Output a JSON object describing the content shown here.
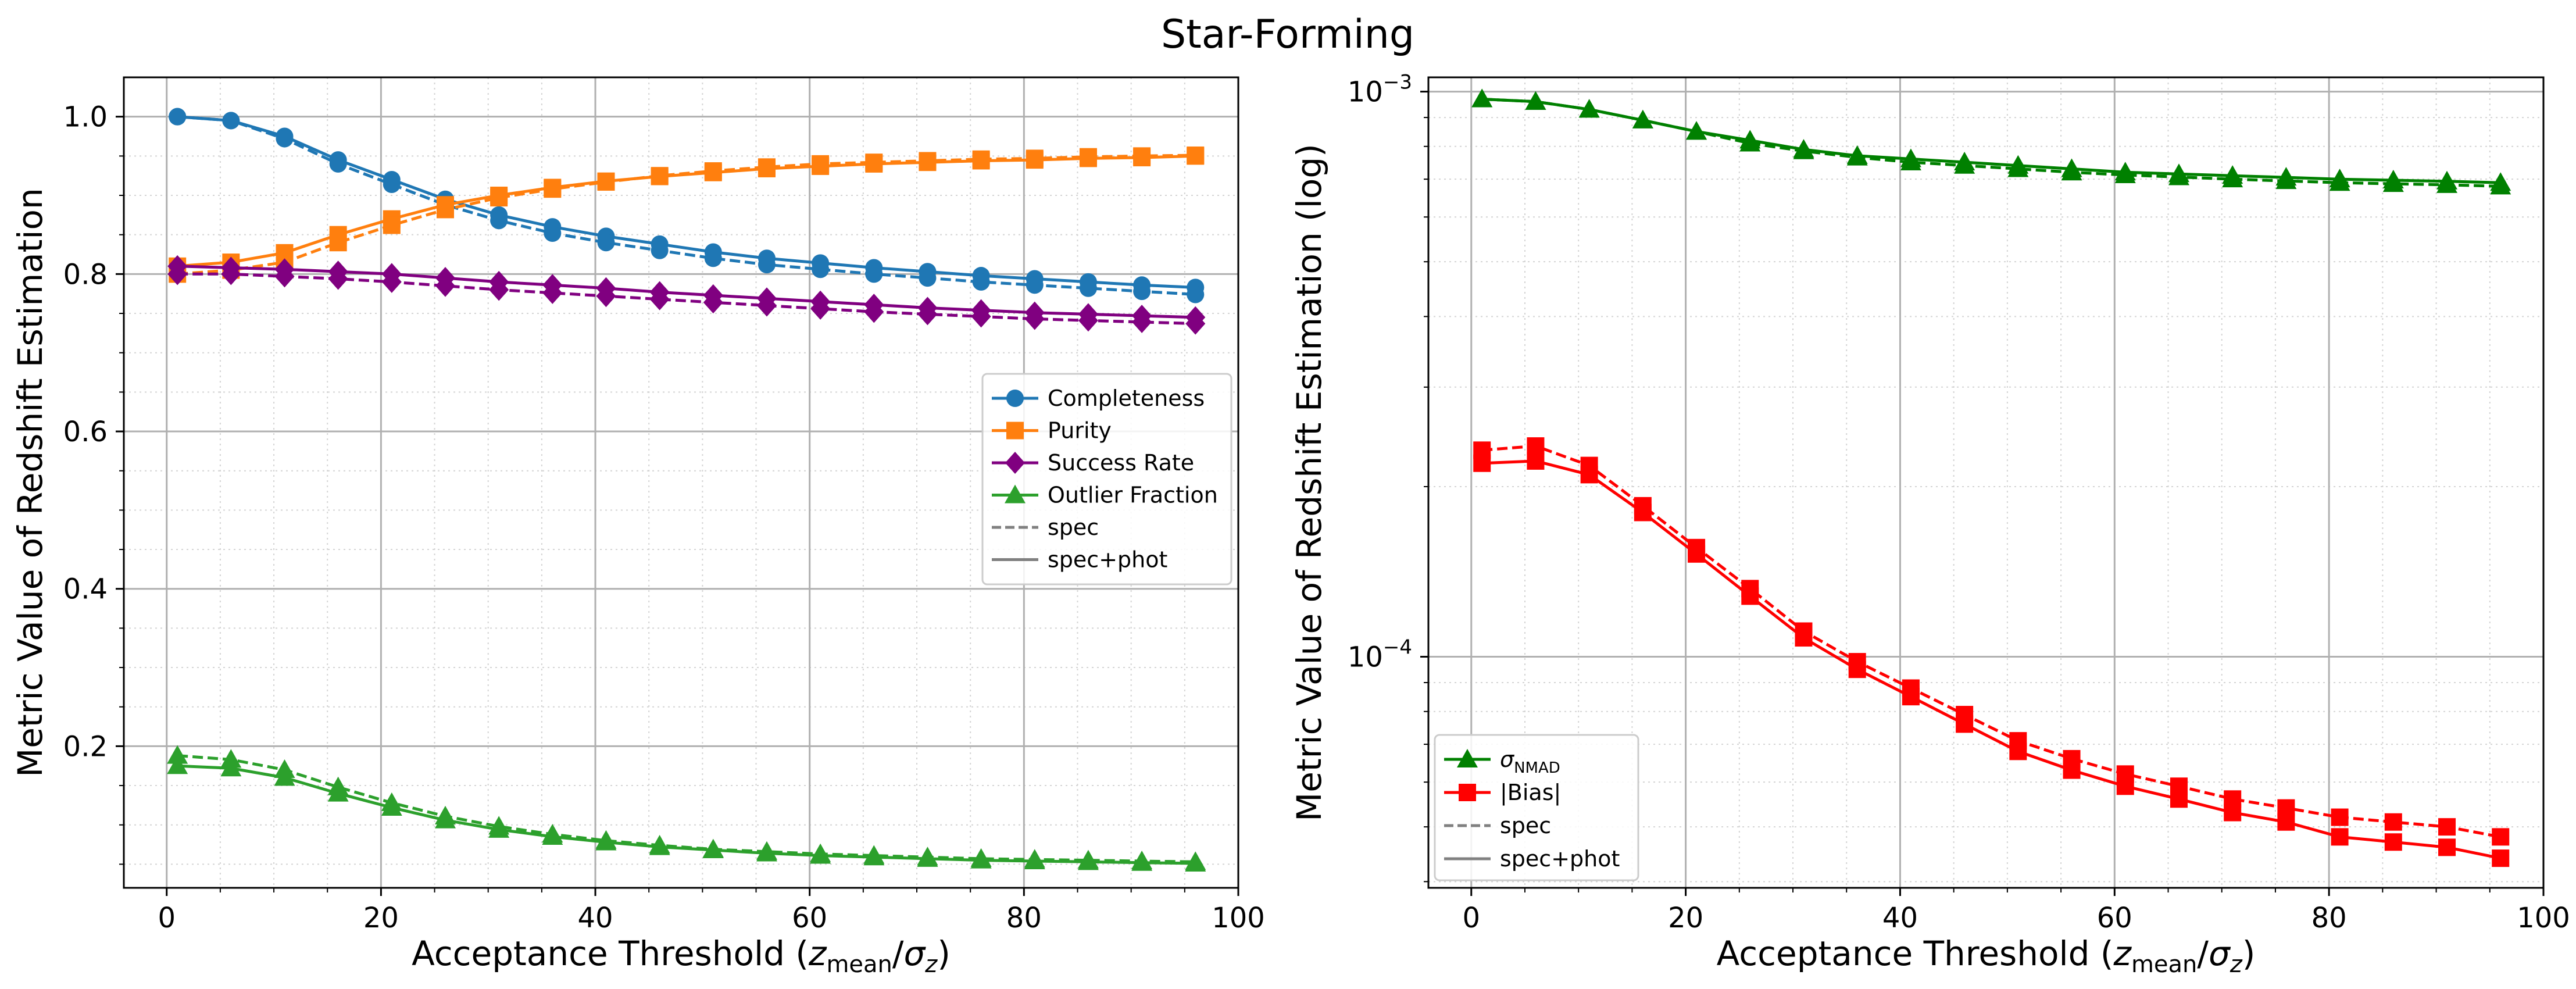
{
  "figure": {
    "title": "Star-Forming"
  },
  "chart_data": [
    {
      "type": "line",
      "xlabel_main": "Acceptance Threshold (",
      "xlabel_z": "z",
      "xlabel_sub1": "mean",
      "xlabel_slash": "/",
      "xlabel_sigma": "σ",
      "xlabel_sub2": "z",
      "xlabel_close": ")",
      "ylabel": "Metric Value of Redshift Estimation",
      "yscale": "linear",
      "xlim": [
        -4,
        100
      ],
      "ylim": [
        0.02,
        1.05
      ],
      "xticks": [
        0,
        20,
        40,
        60,
        80,
        100
      ],
      "xtick_labels": [
        "0",
        "20",
        "40",
        "60",
        "80",
        "100"
      ],
      "yticks": [
        0.2,
        0.4,
        0.6,
        0.8,
        1.0
      ],
      "ytick_labels": [
        "0.2",
        "0.4",
        "0.6",
        "0.8",
        "1.0"
      ],
      "grid": true,
      "legend_position": "center-right",
      "x": [
        1,
        6,
        11,
        16,
        21,
        26,
        31,
        36,
        41,
        46,
        51,
        56,
        61,
        66,
        71,
        76,
        81,
        86,
        91,
        96
      ],
      "series": [
        {
          "name": "Completeness",
          "variant": "spec+phot",
          "color": "#1f77b4",
          "marker": "circle",
          "values": [
            1.0,
            0.995,
            0.975,
            0.945,
            0.92,
            0.895,
            0.875,
            0.86,
            0.848,
            0.838,
            0.828,
            0.82,
            0.814,
            0.808,
            0.803,
            0.798,
            0.794,
            0.79,
            0.786,
            0.783
          ]
        },
        {
          "name": "Completeness",
          "variant": "spec",
          "color": "#1f77b4",
          "marker": "circle",
          "values": [
            1.0,
            0.995,
            0.972,
            0.94,
            0.914,
            0.888,
            0.868,
            0.852,
            0.84,
            0.83,
            0.82,
            0.812,
            0.806,
            0.8,
            0.795,
            0.79,
            0.786,
            0.782,
            0.778,
            0.774
          ]
        },
        {
          "name": "Purity",
          "variant": "spec+phot",
          "color": "#ff7f0e",
          "marker": "square",
          "values": [
            0.81,
            0.815,
            0.827,
            0.85,
            0.87,
            0.888,
            0.9,
            0.91,
            0.918,
            0.924,
            0.929,
            0.934,
            0.937,
            0.94,
            0.942,
            0.944,
            0.945,
            0.947,
            0.948,
            0.95
          ]
        },
        {
          "name": "Purity",
          "variant": "spec",
          "color": "#ff7f0e",
          "marker": "square",
          "values": [
            0.8,
            0.805,
            0.815,
            0.84,
            0.862,
            0.882,
            0.897,
            0.908,
            0.917,
            0.925,
            0.931,
            0.936,
            0.94,
            0.942,
            0.944,
            0.946,
            0.947,
            0.949,
            0.95,
            0.951
          ]
        },
        {
          "name": "Success Rate",
          "variant": "spec+phot",
          "color": "#800080",
          "marker": "diamond",
          "values": [
            0.81,
            0.808,
            0.806,
            0.803,
            0.8,
            0.795,
            0.79,
            0.786,
            0.782,
            0.777,
            0.773,
            0.769,
            0.765,
            0.761,
            0.757,
            0.754,
            0.751,
            0.749,
            0.747,
            0.745
          ]
        },
        {
          "name": "Success Rate",
          "variant": "spec",
          "color": "#800080",
          "marker": "diamond",
          "values": [
            0.8,
            0.8,
            0.797,
            0.794,
            0.79,
            0.785,
            0.78,
            0.776,
            0.772,
            0.768,
            0.764,
            0.76,
            0.756,
            0.752,
            0.749,
            0.746,
            0.743,
            0.741,
            0.739,
            0.737
          ]
        },
        {
          "name": "Outlier Fraction",
          "variant": "spec+phot",
          "color": "#2ca02c",
          "marker": "triangle",
          "values": [
            0.175,
            0.172,
            0.16,
            0.14,
            0.122,
            0.106,
            0.094,
            0.085,
            0.078,
            0.072,
            0.068,
            0.064,
            0.061,
            0.059,
            0.057,
            0.055,
            0.054,
            0.053,
            0.052,
            0.051
          ]
        },
        {
          "name": "Outlier Fraction",
          "variant": "spec",
          "color": "#2ca02c",
          "marker": "triangle",
          "values": [
            0.188,
            0.183,
            0.17,
            0.148,
            0.128,
            0.111,
            0.098,
            0.088,
            0.08,
            0.074,
            0.069,
            0.066,
            0.063,
            0.061,
            0.059,
            0.057,
            0.056,
            0.055,
            0.054,
            0.053
          ]
        }
      ],
      "legend": [
        {
          "label": "Completeness",
          "color": "#1f77b4",
          "marker": "circle",
          "style": "solid"
        },
        {
          "label": "Purity",
          "color": "#ff7f0e",
          "marker": "square",
          "style": "solid"
        },
        {
          "label": "Success Rate",
          "color": "#800080",
          "marker": "diamond",
          "style": "solid"
        },
        {
          "label": "Outlier Fraction",
          "color": "#2ca02c",
          "marker": "triangle",
          "style": "solid"
        },
        {
          "label": "spec",
          "color": "#808080",
          "marker": "none",
          "style": "dashed"
        },
        {
          "label": "spec+phot",
          "color": "#808080",
          "marker": "none",
          "style": "solid"
        }
      ]
    },
    {
      "type": "line",
      "xlabel_main": "Acceptance Threshold (",
      "xlabel_z": "z",
      "xlabel_sub1": "mean",
      "xlabel_slash": "/",
      "xlabel_sigma": "σ",
      "xlabel_sub2": "z",
      "xlabel_close": ")",
      "ylabel": "Metric Value of Redshift Estimation (log)",
      "yscale": "log",
      "xlim": [
        -4,
        100
      ],
      "ylim": [
        3.9e-05,
        0.00106
      ],
      "xticks": [
        0,
        20,
        40,
        60,
        80,
        100
      ],
      "xtick_labels": [
        "0",
        "20",
        "40",
        "60",
        "80",
        "100"
      ],
      "ytick_base": "10",
      "yticks": [
        0.0001,
        0.001
      ],
      "ytick_exponents": [
        "−4",
        "−3"
      ],
      "grid": true,
      "legend_position": "lower-left",
      "x": [
        1,
        6,
        11,
        16,
        21,
        26,
        31,
        36,
        41,
        46,
        51,
        56,
        61,
        66,
        71,
        76,
        81,
        86,
        91,
        96
      ],
      "series": [
        {
          "name": "σNMAD",
          "variant": "spec+phot",
          "color": "#008000",
          "marker": "triangle",
          "values": [
            0.00097,
            0.00096,
            0.00093,
            0.00089,
            0.00085,
            0.00082,
            0.00079,
            0.00077,
            0.00076,
            0.00075,
            0.00074,
            0.00073,
            0.00072,
            0.000715,
            0.00071,
            0.000705,
            0.0007,
            0.000697,
            0.000694,
            0.00069
          ]
        },
        {
          "name": "σNMAD",
          "variant": "spec",
          "color": "#008000",
          "marker": "triangle",
          "values": [
            0.00097,
            0.00096,
            0.00093,
            0.00089,
            0.00085,
            0.00081,
            0.000785,
            0.000765,
            0.00075,
            0.00074,
            0.00073,
            0.00072,
            0.000712,
            0.000706,
            0.0007,
            0.000695,
            0.00069,
            0.000687,
            0.000684,
            0.00068
          ]
        },
        {
          "name": "|Bias|",
          "variant": "spec+phot",
          "color": "#ff0000",
          "marker": "square",
          "values": [
            0.00022,
            0.000222,
            0.00021,
            0.00018,
            0.000152,
            0.000128,
            0.000108,
            9.5e-05,
            8.5e-05,
            7.6e-05,
            6.8e-05,
            6.3e-05,
            5.9e-05,
            5.6e-05,
            5.3e-05,
            5.1e-05,
            4.8e-05,
            4.7e-05,
            4.6e-05,
            4.4e-05
          ]
        },
        {
          "name": "|Bias|",
          "variant": "spec",
          "color": "#ff0000",
          "marker": "square",
          "values": [
            0.000232,
            0.000236,
            0.000218,
            0.000185,
            0.000156,
            0.000132,
            0.000111,
            9.8e-05,
            8.8e-05,
            7.9e-05,
            7.1e-05,
            6.6e-05,
            6.2e-05,
            5.9e-05,
            5.6e-05,
            5.4e-05,
            5.2e-05,
            5.1e-05,
            5e-05,
            4.8e-05
          ]
        }
      ],
      "legend": [
        {
          "label": "σ",
          "sub": "NMAD",
          "color": "#008000",
          "marker": "triangle",
          "style": "solid"
        },
        {
          "label": "|Bias|",
          "color": "#ff0000",
          "marker": "square",
          "style": "solid"
        },
        {
          "label": "spec",
          "color": "#808080",
          "marker": "none",
          "style": "dashed"
        },
        {
          "label": "spec+phot",
          "color": "#808080",
          "marker": "none",
          "style": "solid"
        }
      ]
    }
  ]
}
